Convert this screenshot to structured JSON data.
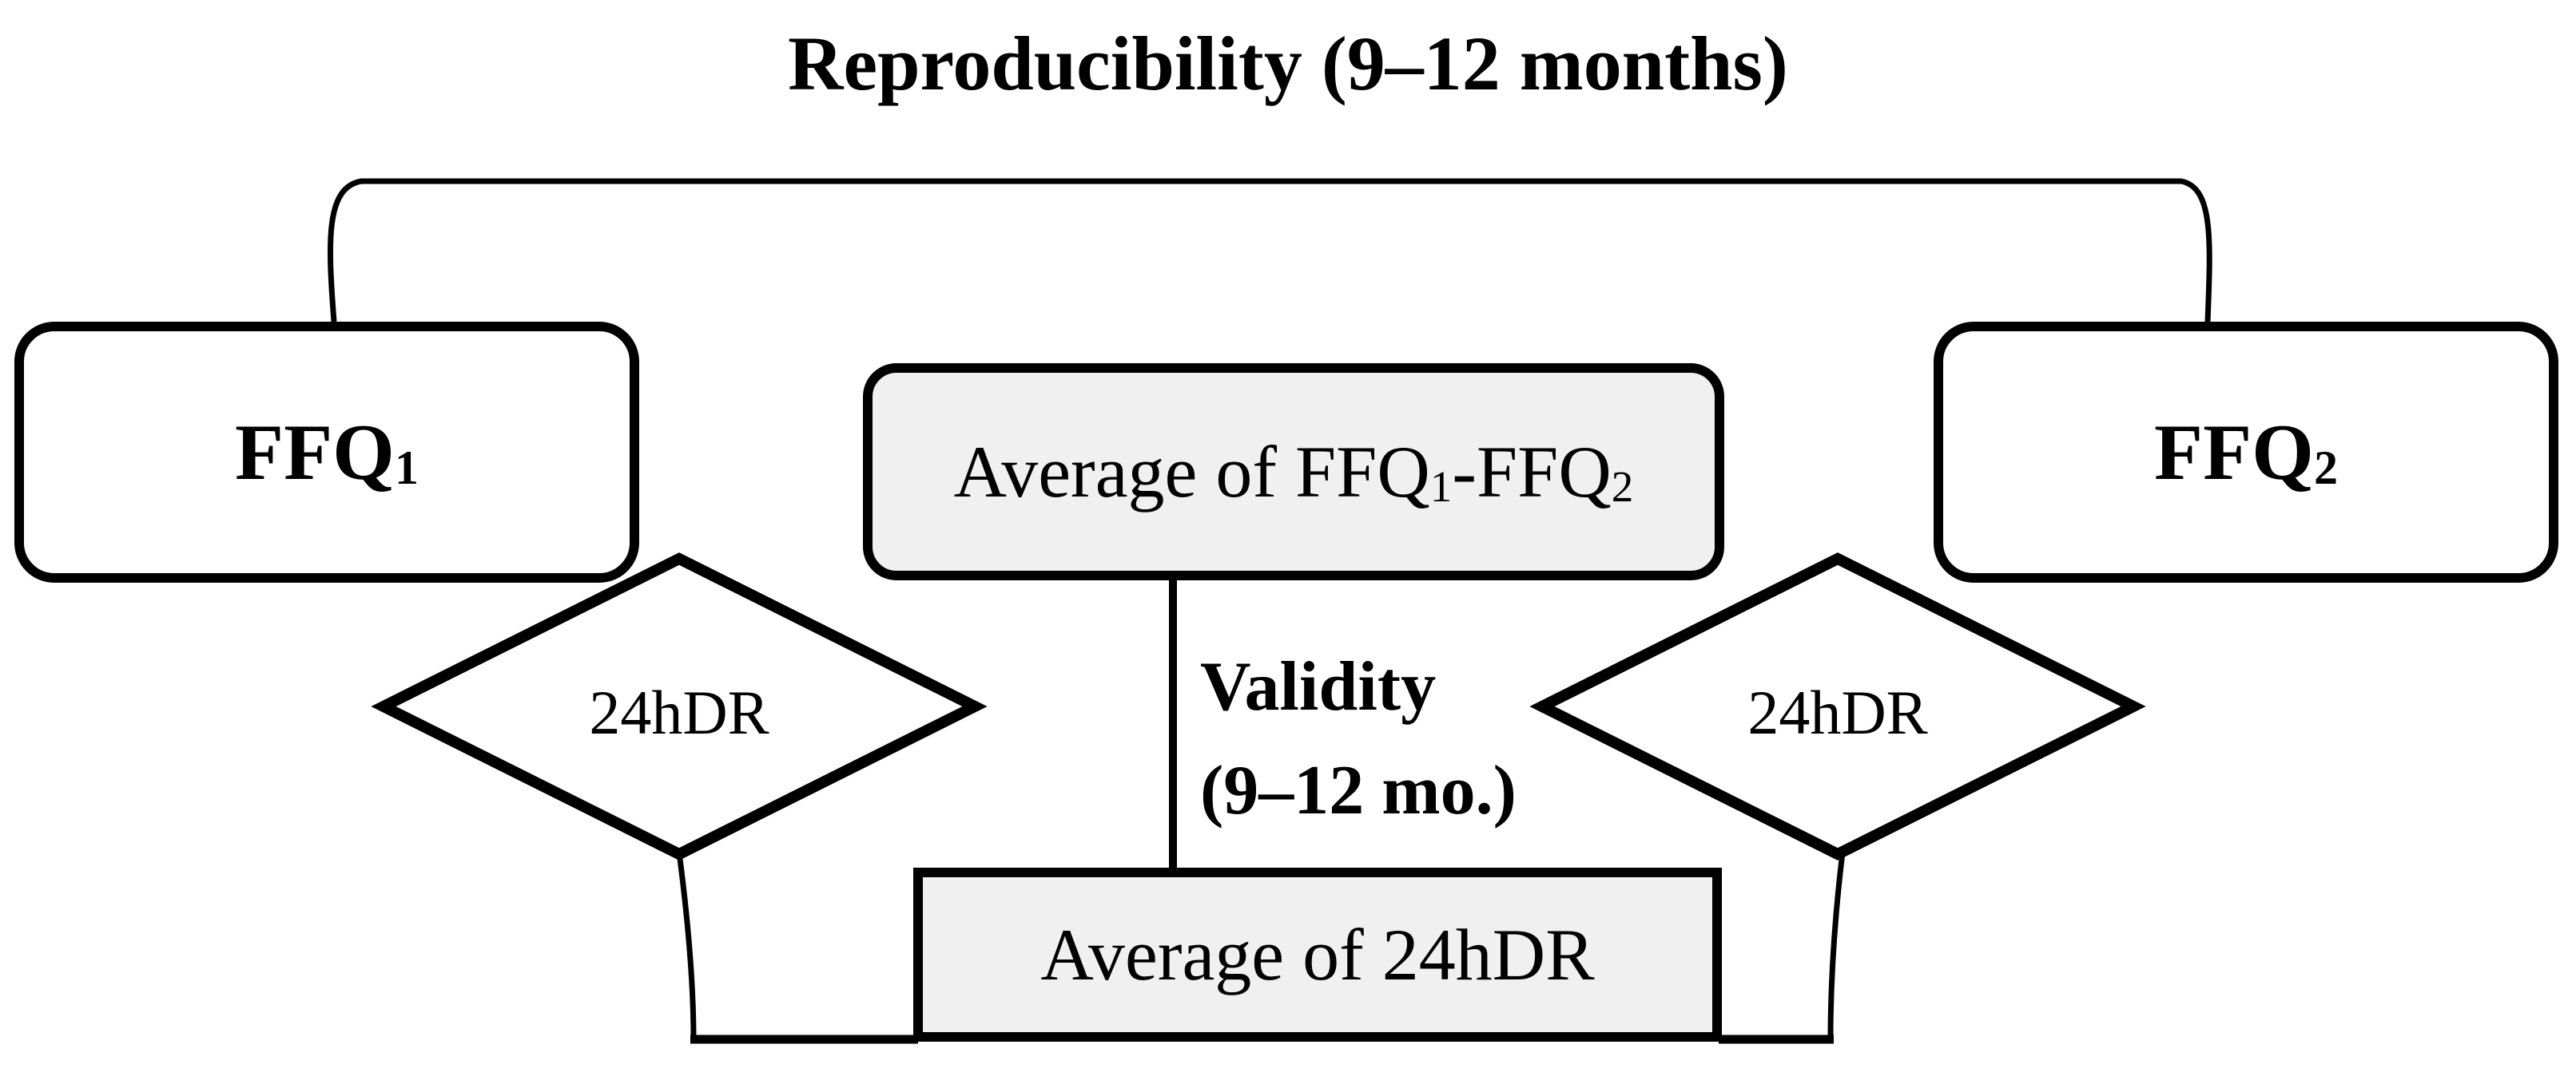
{
  "figure": {
    "title": "Reproducibility (9–12 months)",
    "nodes": {
      "ffq1": {
        "parts": [
          {
            "text": "FFQ"
          },
          {
            "sub": "1"
          }
        ]
      },
      "ffq2": {
        "parts": [
          {
            "text": "FFQ"
          },
          {
            "sub": "2"
          }
        ]
      },
      "avg_ffq": {
        "parts": [
          {
            "text": "Average of FFQ"
          },
          {
            "sub": "1"
          },
          {
            "text": "-FFQ"
          },
          {
            "sub": "2"
          }
        ]
      },
      "avg_24hdr": {
        "label": "Average of 24hDR"
      },
      "diamond_left": {
        "label": "24hDR"
      },
      "diamond_right": {
        "label": "24hDR"
      }
    },
    "annotations": {
      "validity_line1": "Validity",
      "validity_line2": "(9–12 mo.)"
    },
    "colors": {
      "stroke": "#000000",
      "fill_white": "#ffffff",
      "fill_gray": "#f0f0f0",
      "background": "#ffffff"
    }
  }
}
